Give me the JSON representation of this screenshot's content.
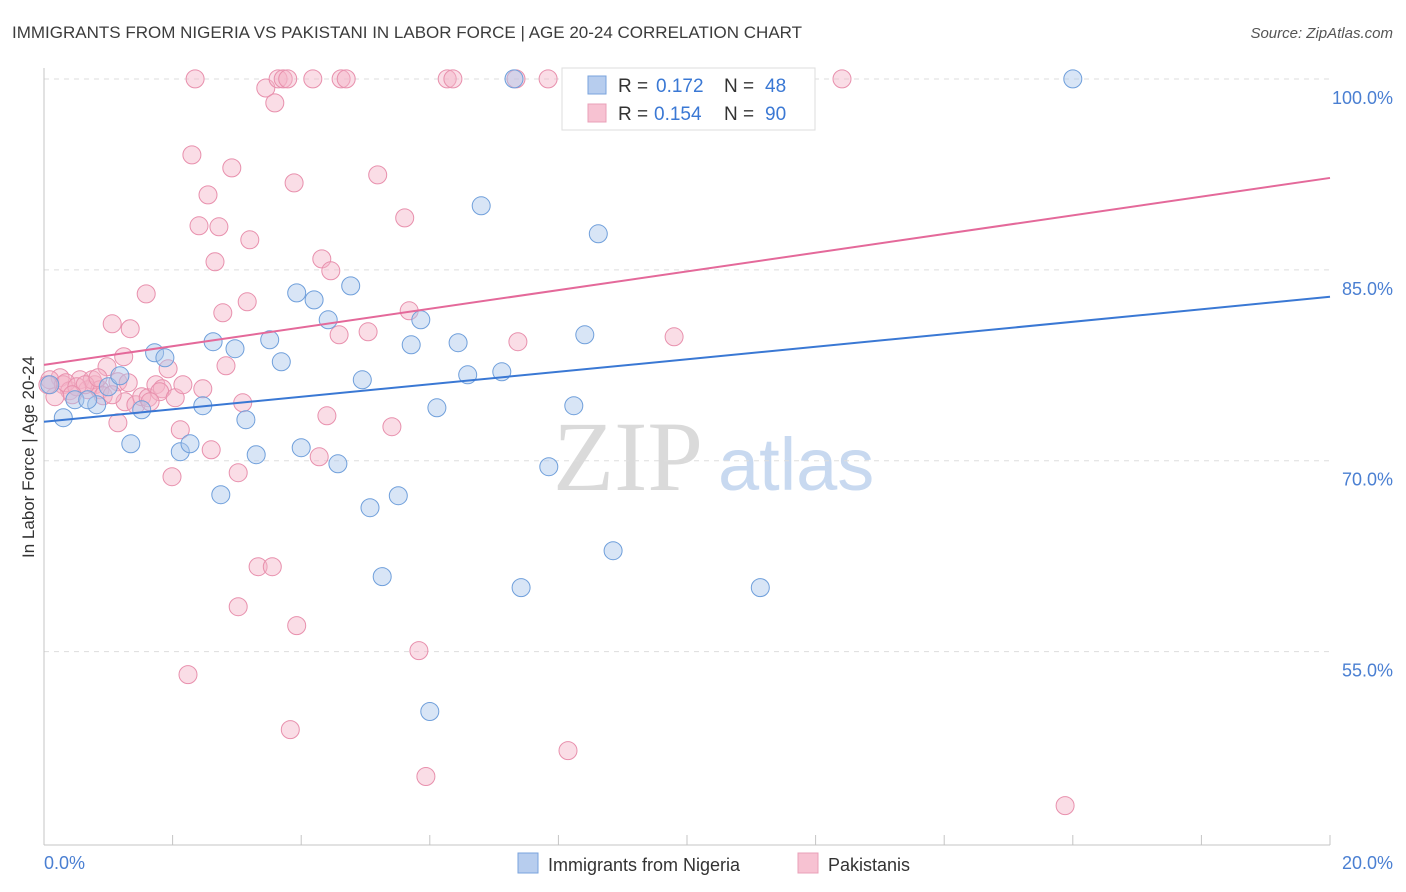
{
  "source": "Source: ZipAtlas.com",
  "watermark": {
    "zip": "ZIP",
    "atlas": "atlas"
  },
  "chart_data": {
    "type": "scatter",
    "title": "IMMIGRANTS FROM NIGERIA VS PAKISTANI IN LABOR FORCE | AGE 20-24 CORRELATION CHART",
    "ylabel": "In Labor Force | Age 20-24",
    "xlim": [
      0,
      20
    ],
    "ylim": [
      39.8,
      100.86
    ],
    "grid": true,
    "x_ticks": [
      {
        "value": 0,
        "label": "0.0%"
      },
      {
        "value": 20,
        "label": "20.0%"
      }
    ],
    "x_minor_ticks": [
      0,
      2,
      4,
      6,
      8,
      10,
      12,
      14,
      16,
      18,
      20
    ],
    "y_ticks": [
      {
        "value": 100,
        "label": "100.0%"
      },
      {
        "value": 85,
        "label": "85.0%"
      },
      {
        "value": 70,
        "label": "70.0%"
      },
      {
        "value": 55,
        "label": "55.0%"
      }
    ],
    "legend": {
      "entries": [
        {
          "r_label": "R =",
          "r": "0.172",
          "n_label": "N =",
          "n": "48"
        },
        {
          "r_label": "R =",
          "r": "0.154",
          "n_label": "N =",
          "n": "90"
        }
      ]
    },
    "series": [
      {
        "name": "Immigrants from Nigeria",
        "color": "#a9c5ec",
        "stroke": "#6f9fdb",
        "trend_color": "#3a78d4",
        "trend": {
          "x": [
            0,
            20
          ],
          "y": [
            73.06,
            82.88
          ]
        },
        "points": [
          [
            0.3,
            73.38
          ],
          [
            0.09,
            75.97
          ],
          [
            0.48,
            74.79
          ],
          [
            0.82,
            74.4
          ],
          [
            1.0,
            75.81
          ],
          [
            1.18,
            76.67
          ],
          [
            1.35,
            71.33
          ],
          [
            1.52,
            74.0
          ],
          [
            1.72,
            78.48
          ],
          [
            1.88,
            78.09
          ],
          [
            2.12,
            70.71
          ],
          [
            2.27,
            71.33
          ],
          [
            2.47,
            74.32
          ],
          [
            2.63,
            79.35
          ],
          [
            2.75,
            67.33
          ],
          [
            2.97,
            78.8
          ],
          [
            3.14,
            73.22
          ],
          [
            3.3,
            70.47
          ],
          [
            3.51,
            79.5
          ],
          [
            3.69,
            77.77
          ],
          [
            3.93,
            83.19
          ],
          [
            4.0,
            71.02
          ],
          [
            4.2,
            82.64
          ],
          [
            4.42,
            81.07
          ],
          [
            4.57,
            69.76
          ],
          [
            4.77,
            83.74
          ],
          [
            4.95,
            76.36
          ],
          [
            5.07,
            66.31
          ],
          [
            5.26,
            60.89
          ],
          [
            5.51,
            67.25
          ],
          [
            5.71,
            79.11
          ],
          [
            5.86,
            81.07
          ],
          [
            6.0,
            50.29
          ],
          [
            6.11,
            74.16
          ],
          [
            6.44,
            79.27
          ],
          [
            6.59,
            76.75
          ],
          [
            6.8,
            90.03
          ],
          [
            7.12,
            76.99
          ],
          [
            7.31,
            100.0
          ],
          [
            7.42,
            60.03
          ],
          [
            7.85,
            69.53
          ],
          [
            8.24,
            74.32
          ],
          [
            8.41,
            79.89
          ],
          [
            8.62,
            87.83
          ],
          [
            8.85,
            62.93
          ],
          [
            11.14,
            60.03
          ],
          [
            16.0,
            100.0
          ],
          [
            0.68,
            74.79
          ]
        ]
      },
      {
        "name": "Pakistanis",
        "color": "#f4b3c7",
        "stroke": "#e890ad",
        "trend_color": "#e4699a",
        "trend": {
          "x": [
            0,
            20
          ],
          "y": [
            77.53,
            92.22
          ]
        },
        "points": [
          [
            2.35,
            100
          ],
          [
            3.45,
            99.29
          ],
          [
            3.59,
            98.12
          ],
          [
            3.64,
            100
          ],
          [
            3.72,
            100
          ],
          [
            3.79,
            100
          ],
          [
            4.18,
            100
          ],
          [
            4.62,
            100
          ],
          [
            4.7,
            100
          ],
          [
            6.27,
            100
          ],
          [
            6.36,
            100
          ],
          [
            7.34,
            100
          ],
          [
            7.84,
            100
          ],
          [
            12.41,
            100
          ],
          [
            2.3,
            94.03
          ],
          [
            2.92,
            93.01
          ],
          [
            2.55,
            90.89
          ],
          [
            2.41,
            88.46
          ],
          [
            2.72,
            88.38
          ],
          [
            3.89,
            91.83
          ],
          [
            5.19,
            92.46
          ],
          [
            5.61,
            89.08
          ],
          [
            3.2,
            87.36
          ],
          [
            2.66,
            85.63
          ],
          [
            4.32,
            85.86
          ],
          [
            4.46,
            84.92
          ],
          [
            1.59,
            83.11
          ],
          [
            3.16,
            82.49
          ],
          [
            2.78,
            81.62
          ],
          [
            1.06,
            80.76
          ],
          [
            1.34,
            80.37
          ],
          [
            4.59,
            79.89
          ],
          [
            5.04,
            80.13
          ],
          [
            5.68,
            81.78
          ],
          [
            7.37,
            79.35
          ],
          [
            9.8,
            79.74
          ],
          [
            1.24,
            78.17
          ],
          [
            2.83,
            77.46
          ],
          [
            1.93,
            77.22
          ],
          [
            0.98,
            77.38
          ],
          [
            0.79,
            75.97
          ],
          [
            0.25,
            76.52
          ],
          [
            0.09,
            76.36
          ],
          [
            0.3,
            75.97
          ],
          [
            0.4,
            75.5
          ],
          [
            0.56,
            76.36
          ],
          [
            0.68,
            75.58
          ],
          [
            0.75,
            76.36
          ],
          [
            0.87,
            75.58
          ],
          [
            0.92,
            75.1
          ],
          [
            1.15,
            76.2
          ],
          [
            1.31,
            76.13
          ],
          [
            1.26,
            74.63
          ],
          [
            1.43,
            74.4
          ],
          [
            1.52,
            75.03
          ],
          [
            1.62,
            74.95
          ],
          [
            1.74,
            75.97
          ],
          [
            1.84,
            75.65
          ],
          [
            1.8,
            75.42
          ],
          [
            2.04,
            74.95
          ],
          [
            2.47,
            75.65
          ],
          [
            3.09,
            74.55
          ],
          [
            1.15,
            72.98
          ],
          [
            2.12,
            72.43
          ],
          [
            2.6,
            70.86
          ],
          [
            1.99,
            68.74
          ],
          [
            3.02,
            69.06
          ],
          [
            4.4,
            73.53
          ],
          [
            5.41,
            72.67
          ],
          [
            4.28,
            70.31
          ],
          [
            3.33,
            61.67
          ],
          [
            3.55,
            61.67
          ],
          [
            3.02,
            58.53
          ],
          [
            3.93,
            57.04
          ],
          [
            5.83,
            55.08
          ],
          [
            2.24,
            53.19
          ],
          [
            3.83,
            48.87
          ],
          [
            8.15,
            47.22
          ],
          [
            5.94,
            45.18
          ],
          [
            15.88,
            42.9
          ],
          [
            0.17,
            75.03
          ],
          [
            0.06,
            75.97
          ],
          [
            0.34,
            76.13
          ],
          [
            0.51,
            75.81
          ],
          [
            0.64,
            75.97
          ],
          [
            1.06,
            75.18
          ],
          [
            1.65,
            74.63
          ],
          [
            2.16,
            75.97
          ],
          [
            0.44,
            75.18
          ],
          [
            0.84,
            76.52
          ]
        ]
      }
    ]
  }
}
